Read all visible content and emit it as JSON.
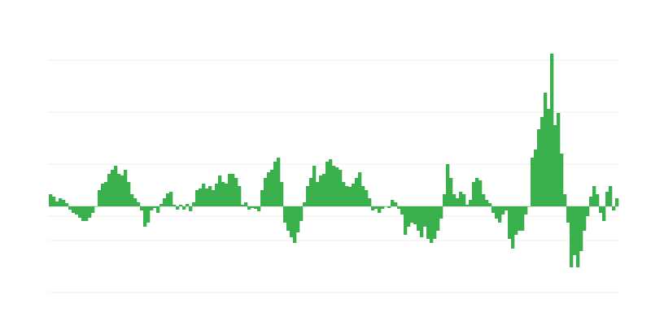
{
  "chart_data": {
    "type": "bar",
    "title": "",
    "xlabel": "",
    "ylabel": "",
    "ylim": [
      -106,
      214
    ],
    "gridlines": [
      180,
      116,
      52,
      -12,
      -42,
      -106
    ],
    "grid": true,
    "legend": "none",
    "bar_color": "#39b04b",
    "grid_color": "#eeeeee",
    "values": [
      15,
      12,
      6,
      10,
      8,
      4,
      -4,
      -8,
      -10,
      -14,
      -18,
      -18,
      -14,
      -8,
      0,
      20,
      28,
      30,
      40,
      45,
      50,
      40,
      38,
      45,
      30,
      15,
      10,
      5,
      -5,
      -25,
      -20,
      -5,
      -2,
      -8,
      3,
      10,
      16,
      18,
      2,
      -4,
      2,
      -4,
      3,
      -6,
      5,
      20,
      22,
      28,
      22,
      25,
      20,
      28,
      38,
      30,
      28,
      40,
      40,
      35,
      25,
      2,
      5,
      -4,
      -2,
      -3,
      -6,
      20,
      35,
      42,
      45,
      55,
      60,
      30,
      -20,
      -30,
      -38,
      -45,
      -32,
      -18,
      5,
      25,
      35,
      50,
      30,
      38,
      40,
      55,
      58,
      50,
      48,
      45,
      30,
      25,
      24,
      28,
      35,
      42,
      25,
      20,
      10,
      -5,
      -3,
      -8,
      -3,
      0,
      -2,
      8,
      5,
      -3,
      -10,
      -35,
      -25,
      -20,
      -22,
      -30,
      -38,
      -25,
      -40,
      -45,
      -40,
      -30,
      -15,
      15,
      52,
      35,
      15,
      10,
      18,
      15,
      2,
      8,
      30,
      35,
      32,
      15,
      8,
      4,
      -8,
      -15,
      -20,
      -10,
      -5,
      -40,
      -52,
      -35,
      -30,
      -30,
      -10,
      0,
      60,
      70,
      95,
      110,
      140,
      120,
      188,
      100,
      115,
      65,
      15,
      -20,
      -75,
      -60,
      -75,
      -55,
      -30,
      -12,
      12,
      25,
      15,
      -8,
      -18,
      18,
      25,
      -5,
      10
    ]
  }
}
